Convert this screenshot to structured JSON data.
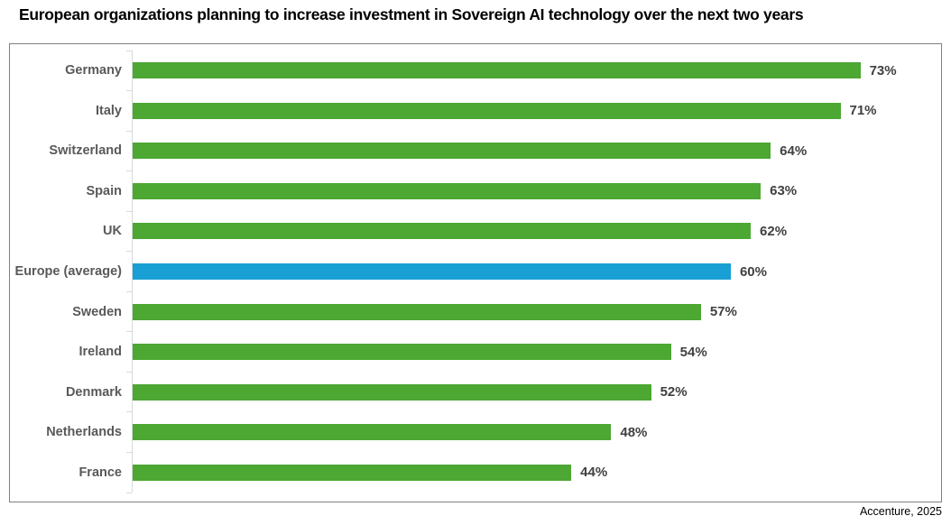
{
  "title": "European organizations planning to increase investment in Sovereign AI technology over the next two years",
  "source": "Accenture, 2025",
  "colors": {
    "bar_default": "#4CA733",
    "bar_highlight": "#189FD4",
    "category_label": "#595959",
    "value_label": "#404040",
    "axis": "#D9D9D9",
    "box_border": "#808080"
  },
  "chart_data": {
    "type": "bar",
    "orientation": "horizontal",
    "title": "European organizations planning to increase investment in Sovereign AI technology over the next two years",
    "xlabel": "",
    "ylabel": "",
    "categories": [
      "Germany",
      "Italy",
      "Switzerland",
      "Spain",
      "UK",
      "Europe (average)",
      "Sweden",
      "Ireland",
      "Denmark",
      "Netherlands",
      "France"
    ],
    "values": [
      73,
      71,
      64,
      63,
      62,
      60,
      57,
      54,
      52,
      48,
      44
    ],
    "value_suffix": "%",
    "highlight_category": "Europe (average)",
    "xlim": [
      0,
      81
    ],
    "grid": false,
    "legend": false,
    "data_labels": [
      "73%",
      "71%",
      "64%",
      "63%",
      "62%",
      "60%",
      "57%",
      "54%",
      "52%",
      "48%",
      "44%"
    ]
  }
}
